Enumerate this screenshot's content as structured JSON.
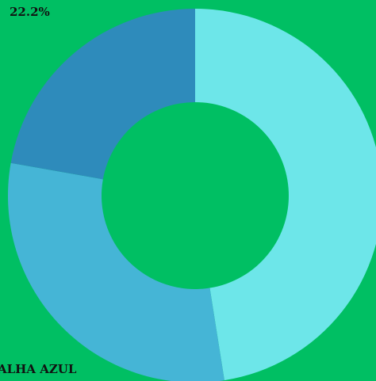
{
  "chart_data": {
    "type": "donut",
    "categories": [
      null,
      "ALHA AZUL",
      null
    ],
    "values": [
      47.5,
      30.3,
      22.2
    ],
    "value_labels": [
      null,
      null,
      "22.2%"
    ],
    "colors": [
      "#6de6e9",
      "#45b5d6",
      "#2e8bbb"
    ],
    "background": "#00bf63"
  }
}
